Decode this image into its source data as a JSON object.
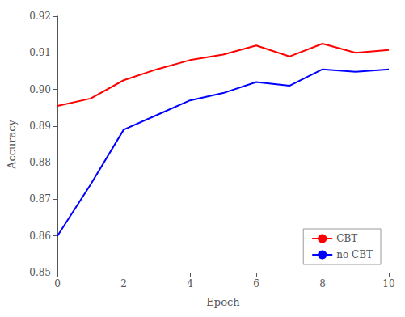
{
  "chart_data": {
    "type": "line",
    "xlabel": "Epoch",
    "ylabel": "Accuracy",
    "x": [
      0,
      1,
      2,
      3,
      4,
      5,
      6,
      7,
      8,
      9,
      10
    ],
    "series": [
      {
        "name": "CBT",
        "color": "#ff0000",
        "values": [
          0.8955,
          0.8975,
          0.9025,
          0.9055,
          0.908,
          0.9095,
          0.912,
          0.909,
          0.9125,
          0.91,
          0.9108
        ]
      },
      {
        "name": "no CBT",
        "color": "#0000ff",
        "values": [
          0.86,
          0.874,
          0.889,
          0.893,
          0.897,
          0.899,
          0.902,
          0.901,
          0.9055,
          0.9048,
          0.9055
        ]
      }
    ],
    "xlim": [
      0,
      10
    ],
    "xticks": [
      0,
      2,
      4,
      6,
      8,
      10
    ],
    "ylim": [
      0.85,
      0.92
    ],
    "yticks": [
      0.85,
      0.86,
      0.87,
      0.88,
      0.89,
      {
        "value": 0.9,
        "label": "0.90"
      },
      0.91,
      0.92
    ],
    "legend": "lower right",
    "grid": false
  }
}
